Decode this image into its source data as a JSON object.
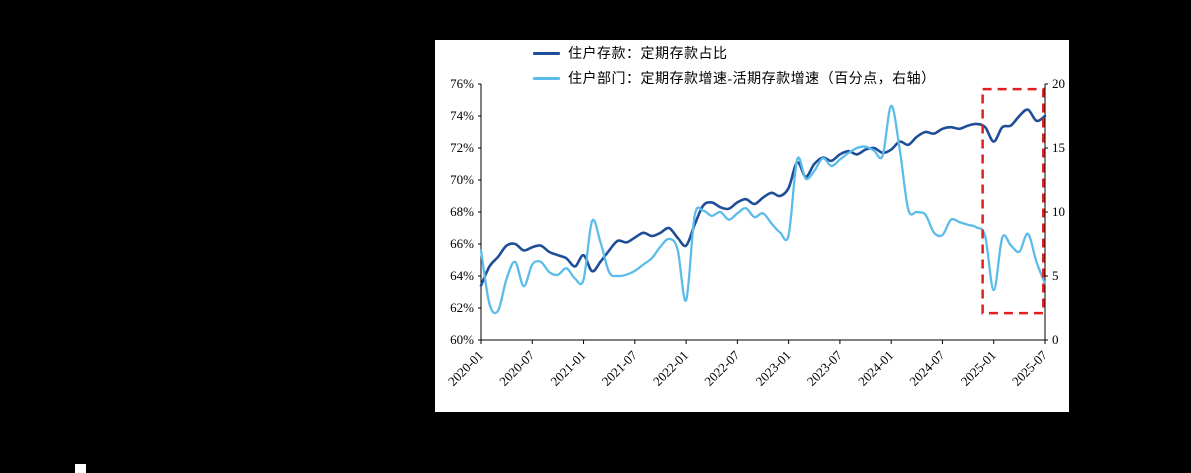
{
  "page": {
    "background_color": "#000000",
    "panel_background_color": "#ffffff"
  },
  "chart_data": {
    "type": "line",
    "title": "",
    "grid": false,
    "legend_position": "top-left",
    "categories": [
      "2020-01",
      "2020-02",
      "2020-03",
      "2020-04",
      "2020-05",
      "2020-06",
      "2020-07",
      "2020-08",
      "2020-09",
      "2020-10",
      "2020-11",
      "2020-12",
      "2021-01",
      "2021-02",
      "2021-03",
      "2021-04",
      "2021-05",
      "2021-06",
      "2021-07",
      "2021-08",
      "2021-09",
      "2021-10",
      "2021-11",
      "2021-12",
      "2022-01",
      "2022-02",
      "2022-03",
      "2022-04",
      "2022-05",
      "2022-06",
      "2022-07",
      "2022-08",
      "2022-09",
      "2022-10",
      "2022-11",
      "2022-12",
      "2023-01",
      "2023-02",
      "2023-03",
      "2023-04",
      "2023-05",
      "2023-06",
      "2023-07",
      "2023-08",
      "2023-09",
      "2023-10",
      "2023-11",
      "2023-12",
      "2024-01",
      "2024-02",
      "2024-03",
      "2024-04",
      "2024-05",
      "2024-06",
      "2024-07",
      "2024-08",
      "2024-09",
      "2024-10",
      "2024-11",
      "2024-12",
      "2025-01",
      "2025-02",
      "2025-03",
      "2025-04",
      "2025-05",
      "2025-06",
      "2025-07"
    ],
    "x_tick_labels": [
      "2020-01",
      "2020-07",
      "2021-01",
      "2021-07",
      "2022-01",
      "2022-07",
      "2023-01",
      "2023-07",
      "2024-01",
      "2024-07",
      "2025-01",
      "2025-07"
    ],
    "x_tick_indices": [
      0,
      6,
      12,
      18,
      24,
      30,
      36,
      42,
      48,
      54,
      60,
      66
    ],
    "left_axis": {
      "min": 60,
      "max": 76,
      "tick_values": [
        60,
        62,
        64,
        66,
        68,
        70,
        72,
        74,
        76
      ],
      "tick_labels": [
        "60%",
        "62%",
        "64%",
        "66%",
        "68%",
        "70%",
        "72%",
        "74%",
        "76%"
      ]
    },
    "right_axis": {
      "min": 0,
      "max": 20,
      "tick_values": [
        0,
        5,
        10,
        15,
        20
      ],
      "tick_labels": [
        "0",
        "5",
        "10",
        "15",
        "20"
      ]
    },
    "series": [
      {
        "name": "住户存款：定期存款占比",
        "axis": "left",
        "color": "#1F4E99",
        "stroke_width": 2.6,
        "values": [
          63.4,
          64.6,
          65.2,
          65.9,
          66.0,
          65.6,
          65.8,
          65.9,
          65.5,
          65.3,
          65.1,
          64.6,
          65.3,
          64.3,
          64.9,
          65.6,
          66.2,
          66.1,
          66.4,
          66.7,
          66.5,
          66.7,
          67.0,
          66.4,
          65.9,
          67.2,
          68.4,
          68.6,
          68.3,
          68.2,
          68.6,
          68.8,
          68.5,
          68.9,
          69.2,
          69.0,
          69.5,
          71.1,
          70.2,
          71.0,
          71.4,
          71.2,
          71.6,
          71.8,
          71.6,
          71.9,
          72.0,
          71.7,
          71.9,
          72.4,
          72.2,
          72.7,
          73.0,
          72.9,
          73.2,
          73.3,
          73.2,
          73.4,
          73.5,
          73.3,
          72.4,
          73.3,
          73.4,
          74.0,
          74.4,
          73.7,
          74.0
        ]
      },
      {
        "name": "住户部门：定期存款增速-活期存款增速（百分点，右轴）",
        "axis": "right",
        "color": "#5BBCEA",
        "stroke_width": 2.3,
        "values": [
          7.0,
          2.8,
          2.3,
          4.8,
          6.1,
          4.2,
          5.9,
          6.1,
          5.3,
          5.1,
          5.6,
          4.8,
          4.7,
          9.3,
          7.6,
          5.3,
          5.0,
          5.1,
          5.4,
          5.9,
          6.4,
          7.3,
          7.9,
          7.1,
          3.1,
          9.7,
          10.1,
          9.7,
          10.0,
          9.4,
          9.9,
          10.3,
          9.6,
          9.9,
          9.1,
          8.4,
          8.2,
          14.1,
          12.6,
          13.2,
          14.2,
          13.6,
          14.1,
          14.6,
          15.0,
          15.1,
          14.8,
          14.4,
          18.3,
          14.9,
          10.2,
          10.0,
          9.8,
          8.4,
          8.2,
          9.4,
          9.2,
          9.0,
          8.8,
          8.1,
          3.9,
          8.0,
          7.4,
          6.9,
          8.3,
          6.1,
          4.4
        ]
      }
    ],
    "highlight_box": {
      "color": "#E02020",
      "axis": "right",
      "from_index": 58.7,
      "to_index": 65.8,
      "top_value": 19.6,
      "bottom_value": 2.1
    }
  }
}
